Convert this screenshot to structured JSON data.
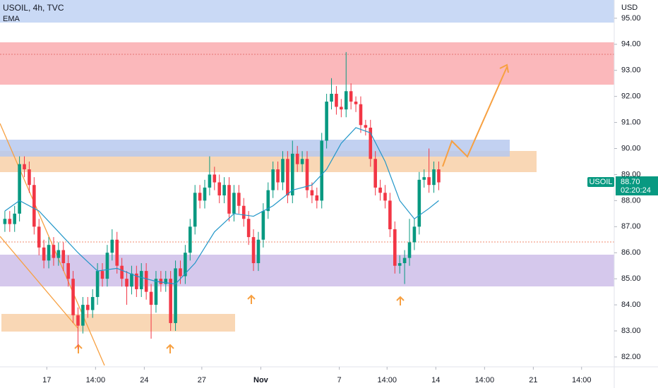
{
  "chart_data": {
    "type": "candlestick",
    "title": "USOIL, 4h, TVC",
    "y_label": "USD",
    "symbol": "USOIL",
    "last_price_label": "88.70",
    "countdown": "02:20:24",
    "up_color": "#089981",
    "down_color": "#f23645",
    "x": [
      1,
      2,
      3,
      4,
      5,
      6,
      7,
      8,
      9,
      10,
      11,
      12,
      13,
      14,
      15,
      16,
      17,
      18,
      19,
      20,
      21,
      22,
      23,
      24,
      25,
      26,
      27,
      28,
      29,
      30,
      31,
      32,
      33,
      34,
      35,
      36,
      37,
      38,
      39,
      40,
      41,
      42,
      43,
      44,
      45,
      46,
      47,
      48,
      49,
      50,
      51,
      52,
      53,
      54,
      55,
      56,
      57,
      58,
      59,
      60,
      61,
      62,
      63,
      64,
      65,
      66,
      67,
      68,
      69,
      70,
      71,
      72,
      73,
      74,
      75,
      76,
      77,
      78,
      79,
      80,
      81,
      82,
      83,
      84,
      85,
      86,
      87,
      88,
      89,
      90
    ],
    "open": [
      87.1,
      87.3,
      87.1,
      87.5,
      89.4,
      89.2,
      88.6,
      87.0,
      86.2,
      85.7,
      86.3,
      85.8,
      86.1,
      85.6,
      85.0,
      83.6,
      83.2,
      84.0,
      83.8,
      84.3,
      85.3,
      85.0,
      86.0,
      86.5,
      85.5,
      85.0,
      84.7,
      85.2,
      84.6,
      85.3,
      84.5,
      84.0,
      85.0,
      84.8,
      85.0,
      83.3,
      85.4,
      85.1,
      86.0,
      87.0,
      88.3,
      88.0,
      88.5,
      89.0,
      88.7,
      88.2,
      88.6,
      87.5,
      88.3,
      87.8,
      87.3,
      86.6,
      85.6,
      86.5,
      87.6,
      88.4,
      89.2,
      88.7,
      89.6,
      88.2,
      89.8,
      89.4,
      89.6,
      88.4,
      88.2,
      88.0,
      90.3,
      91.8,
      92.1,
      91.6,
      91.5,
      92.2,
      91.8,
      91.7,
      90.9,
      90.8,
      89.6,
      88.5,
      88.3,
      88.0,
      86.9,
      85.5,
      85.6,
      85.8,
      86.4,
      87.0,
      88.8,
      88.9,
      88.6,
      89.2
    ],
    "high": [
      87.6,
      87.6,
      87.8,
      89.7,
      89.7,
      89.5,
      88.9,
      87.3,
      86.5,
      86.6,
      86.6,
      86.4,
      86.4,
      85.9,
      85.3,
      83.9,
      84.3,
      84.3,
      84.6,
      85.6,
      85.6,
      86.3,
      86.9,
      86.8,
      85.8,
      85.3,
      85.5,
      85.5,
      85.6,
      85.6,
      84.8,
      85.3,
      85.3,
      85.3,
      85.3,
      85.7,
      85.7,
      86.3,
      87.3,
      88.6,
      88.6,
      88.8,
      89.7,
      89.3,
      89.0,
      88.9,
      88.9,
      88.6,
      88.6,
      88.1,
      87.6,
      86.9,
      86.8,
      87.9,
      88.7,
      89.5,
      89.5,
      89.9,
      89.9,
      90.3,
      90.1,
      89.9,
      89.9,
      88.7,
      88.5,
      90.6,
      92.1,
      92.7,
      92.4,
      91.9,
      93.7,
      92.5,
      92.0,
      92.0,
      91.1,
      91.1,
      89.9,
      88.8,
      88.6,
      88.3,
      87.2,
      85.9,
      86.1,
      87.3,
      87.3,
      89.1,
      89.2,
      90.0,
      89.5,
      89.5
    ],
    "low": [
      86.8,
      86.8,
      86.8,
      87.2,
      88.9,
      88.3,
      86.7,
      85.9,
      85.4,
      85.4,
      85.5,
      85.5,
      85.3,
      84.7,
      83.3,
      82.3,
      82.9,
      83.5,
      83.5,
      84.0,
      84.7,
      84.7,
      85.7,
      85.2,
      84.7,
      84.0,
      84.4,
      84.3,
      84.3,
      84.2,
      82.7,
      83.7,
      84.5,
      84.5,
      83.0,
      83.0,
      84.8,
      84.8,
      85.7,
      86.7,
      87.7,
      87.7,
      88.2,
      88.4,
      87.9,
      87.9,
      87.2,
      87.2,
      87.5,
      87.0,
      86.3,
      85.3,
      85.3,
      86.2,
      87.3,
      88.1,
      88.4,
      88.4,
      87.9,
      87.9,
      89.1,
      89.1,
      88.1,
      87.9,
      87.7,
      87.7,
      90.0,
      91.5,
      91.3,
      91.2,
      91.2,
      91.5,
      91.4,
      90.6,
      90.5,
      89.3,
      88.2,
      88.0,
      87.7,
      86.6,
      85.2,
      85.2,
      84.8,
      85.5,
      86.1,
      86.7,
      88.5,
      88.3,
      88.3,
      88.4
    ],
    "close": [
      87.3,
      87.1,
      87.5,
      89.4,
      89.2,
      88.6,
      87.0,
      86.2,
      85.7,
      86.3,
      85.8,
      86.1,
      85.6,
      85.0,
      83.6,
      83.2,
      84.0,
      83.8,
      84.3,
      85.3,
      85.0,
      86.0,
      86.5,
      85.5,
      85.0,
      84.7,
      85.2,
      84.6,
      85.3,
      84.5,
      84.0,
      85.0,
      84.8,
      85.0,
      83.3,
      85.4,
      85.1,
      86.0,
      87.0,
      88.3,
      88.0,
      88.5,
      89.0,
      88.7,
      88.2,
      88.6,
      87.5,
      88.3,
      87.8,
      87.3,
      86.6,
      85.6,
      86.5,
      87.6,
      88.4,
      89.2,
      88.7,
      89.6,
      88.2,
      89.8,
      89.4,
      89.6,
      88.4,
      88.2,
      88.0,
      90.3,
      91.8,
      92.1,
      91.6,
      91.5,
      92.2,
      91.8,
      91.7,
      90.9,
      90.8,
      89.6,
      88.5,
      88.3,
      88.0,
      86.9,
      85.5,
      85.6,
      85.8,
      86.4,
      87.0,
      88.8,
      88.9,
      88.6,
      89.2,
      88.7
    ],
    "ema": {
      "name": "EMA",
      "color": "#2196c8",
      "x": [
        1,
        4,
        8,
        12,
        16,
        20,
        24,
        28,
        32,
        36,
        40,
        44,
        48,
        52,
        56,
        60,
        64,
        67,
        70,
        73,
        76,
        79,
        82,
        85,
        88,
        90
      ],
      "values": [
        87.6,
        88.0,
        87.6,
        86.8,
        86.0,
        85.3,
        85.4,
        85.1,
        84.9,
        84.8,
        85.6,
        86.8,
        87.5,
        87.4,
        87.8,
        88.4,
        88.6,
        89.2,
        90.2,
        90.8,
        90.6,
        89.5,
        88.0,
        87.3,
        87.7,
        88.0
      ]
    },
    "xlim": [
      0,
      126
    ],
    "ylim": [
      81.62,
      95.7
    ],
    "xticks": [
      {
        "value": 9.6,
        "label": "17"
      },
      {
        "value": 19.6,
        "label": "14:00"
      },
      {
        "value": 29.6,
        "label": "24"
      },
      {
        "value": 41.4,
        "label": "27"
      },
      {
        "value": 53.5,
        "label": "Nov"
      },
      {
        "value": 69.6,
        "label": "7"
      },
      {
        "value": 79.4,
        "label": "14:00"
      },
      {
        "value": 89.4,
        "label": "14"
      },
      {
        "value": 99.4,
        "label": "14:00"
      },
      {
        "value": 109.4,
        "label": "21"
      },
      {
        "value": 119.3,
        "label": "14:00"
      }
    ],
    "yticks": [
      {
        "value": 82,
        "label": "82.00"
      },
      {
        "value": 83,
        "label": "83.00"
      },
      {
        "value": 84,
        "label": "84.00"
      },
      {
        "value": 85,
        "label": "85.00"
      },
      {
        "value": 86,
        "label": "86.00"
      },
      {
        "value": 87,
        "label": "87.00"
      },
      {
        "value": 88,
        "label": "88.00"
      },
      {
        "value": 89,
        "label": "89.00"
      },
      {
        "value": 90,
        "label": "90.00"
      },
      {
        "value": 91,
        "label": "91.00"
      },
      {
        "value": 92,
        "label": "92.00"
      },
      {
        "value": 93,
        "label": "93.00"
      },
      {
        "value": 94,
        "label": "94.00"
      },
      {
        "value": 95,
        "label": "95.00"
      }
    ]
  }
}
